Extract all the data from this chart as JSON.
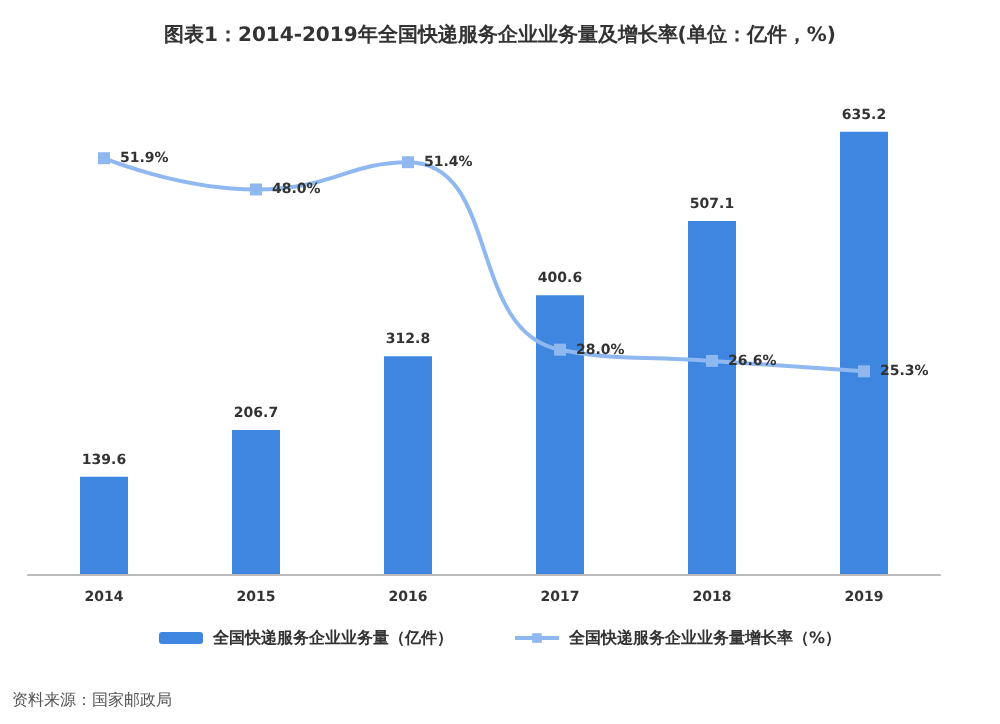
{
  "chart_data": {
    "type": "bar",
    "title": "图表1：2014-2019年全国快递服务企业业务量及增长率(单位：亿件，%)",
    "categories": [
      "2014",
      "2015",
      "2016",
      "2017",
      "2018",
      "2019"
    ],
    "series": [
      {
        "name": "全国快递服务企业业务量（亿件）",
        "color": "#3f86e0",
        "values": [
          139.6,
          206.7,
          312.8,
          400.6,
          507.1,
          635.2
        ],
        "value_labels": [
          "139.6",
          "206.7",
          "312.8",
          "400.6",
          "507.1",
          "635.2"
        ]
      },
      {
        "name": "全国快递服务企业业务量增长率（%）",
        "type": "line",
        "axis": "y2",
        "color": "#8fb8f0",
        "marker": "square",
        "values": [
          51.9,
          48.0,
          51.4,
          28.0,
          26.6,
          25.3
        ],
        "value_labels": [
          "51.9%",
          "48.0%",
          "51.4%",
          "28.0%",
          "26.6%",
          "25.3%"
        ]
      }
    ],
    "legend": "bottom",
    "annotations": [
      "资料来源：国家邮政局"
    ]
  }
}
